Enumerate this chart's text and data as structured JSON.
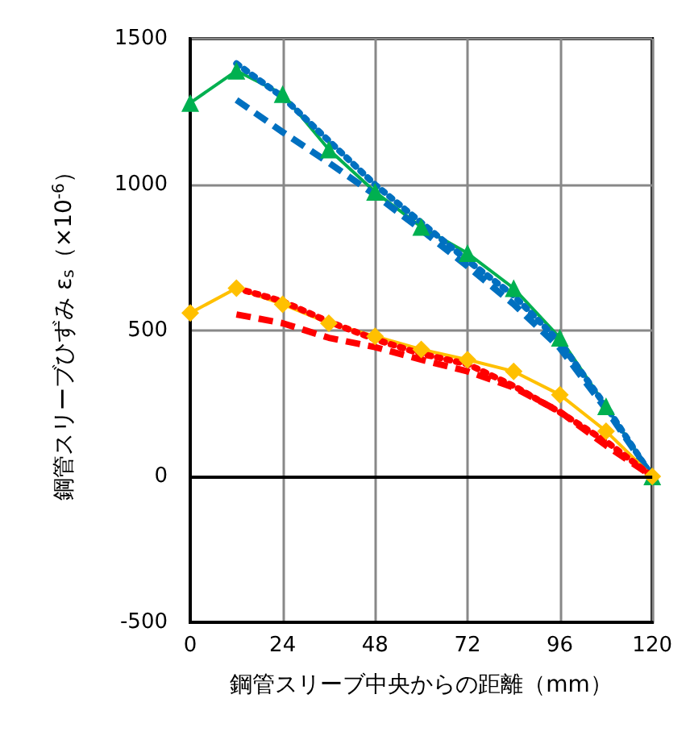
{
  "chart_data": {
    "type": "line",
    "xlabel": "鋼管スリーブ中央からの距離（mm）",
    "ylabel": "鋼管スリーブひずみ ε$_{s}$（×10$^{-6}$）",
    "xlim": [
      0,
      120
    ],
    "xticks": [
      0,
      24,
      48,
      72,
      96,
      120
    ],
    "ylim": [
      -500,
      1500
    ],
    "yticks": [
      -500,
      0,
      500,
      1000,
      1500
    ],
    "grid": true,
    "ref_lines": [
      {
        "axis": "y",
        "value": 0,
        "color": "#000000"
      }
    ],
    "series": [
      {
        "color": "#00b050",
        "marker": "triangle",
        "line_style": "solid",
        "x": [
          0,
          12,
          24,
          36,
          48,
          60,
          72,
          84,
          96,
          108,
          120
        ],
        "values": [
          1280,
          1390,
          1310,
          1120,
          975,
          855,
          765,
          645,
          475,
          240,
          0
        ]
      },
      {
        "color": "#0070c0",
        "marker": "none",
        "line_style": "dotted",
        "x": [
          12,
          24,
          36,
          48,
          60,
          72,
          84,
          96,
          108,
          120
        ],
        "values": [
          1415,
          1300,
          1150,
          1000,
          870,
          740,
          620,
          460,
          240,
          0
        ]
      },
      {
        "color": "#0070c0",
        "marker": "none",
        "line_style": "dashed",
        "x": [
          12,
          24,
          36,
          48,
          60,
          72,
          84,
          96,
          108,
          120
        ],
        "values": [
          1290,
          1180,
          1075,
          965,
          845,
          720,
          590,
          440,
          230,
          0
        ]
      },
      {
        "color": "#ffc000",
        "marker": "diamond",
        "line_style": "solid",
        "x": [
          0,
          12,
          24,
          36,
          48,
          60,
          72,
          84,
          96,
          108,
          120
        ],
        "values": [
          560,
          645,
          590,
          525,
          480,
          435,
          400,
          360,
          280,
          155,
          0
        ]
      },
      {
        "color": "#ff0000",
        "marker": "none",
        "line_style": "dotted",
        "x": [
          12,
          24,
          36,
          48,
          60,
          72,
          84,
          96,
          108,
          120
        ],
        "values": [
          645,
          600,
          530,
          470,
          420,
          385,
          310,
          220,
          120,
          0
        ]
      },
      {
        "color": "#ff0000",
        "marker": "none",
        "line_style": "dashed",
        "x": [
          12,
          24,
          36,
          48,
          60,
          72,
          84,
          96,
          108,
          120
        ],
        "values": [
          555,
          525,
          475,
          443,
          400,
          360,
          305,
          222,
          106,
          0
        ]
      }
    ]
  }
}
